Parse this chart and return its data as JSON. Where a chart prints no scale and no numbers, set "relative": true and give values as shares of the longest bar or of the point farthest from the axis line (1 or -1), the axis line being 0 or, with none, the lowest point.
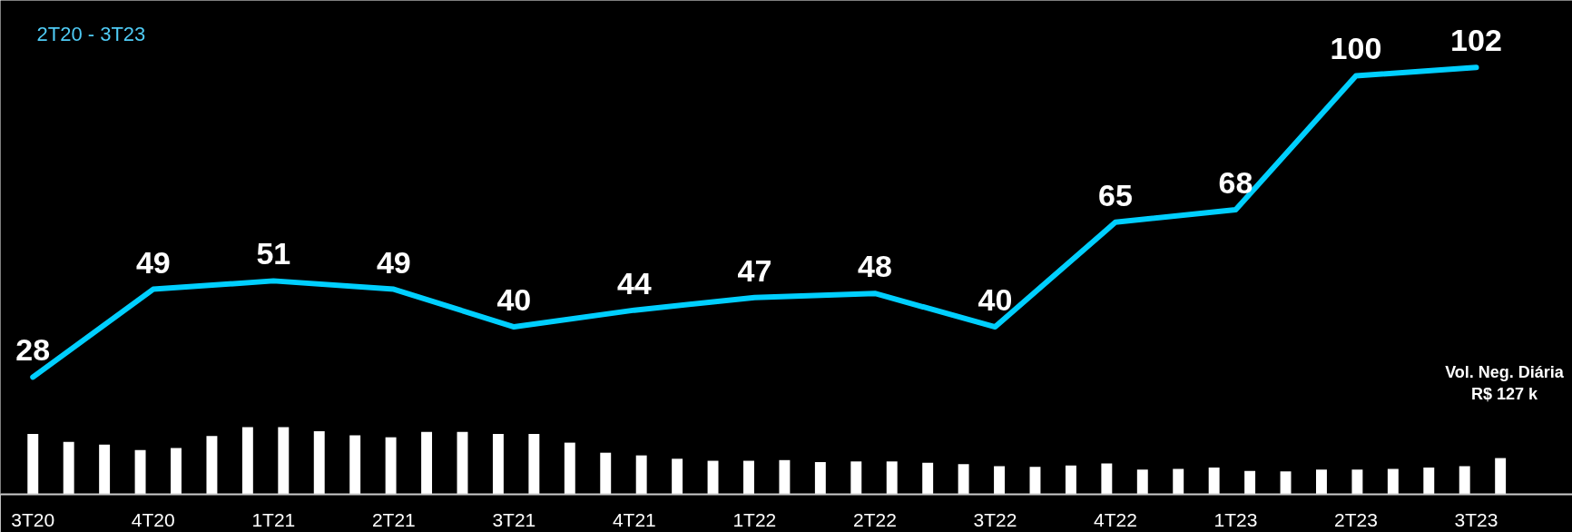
{
  "chart_data": [
    {
      "type": "line",
      "title": "2T20 - 3T23",
      "categories": [
        "3T20",
        "4T20",
        "1T21",
        "2T21",
        "3T21",
        "4T21",
        "1T22",
        "2T22",
        "3T22",
        "4T22",
        "1T23",
        "2T23",
        "3T23"
      ],
      "series": [
        {
          "color": "#00cfff",
          "values": [
            28,
            49,
            51,
            49,
            40,
            44,
            47,
            48,
            40,
            65,
            68,
            100,
            102
          ]
        }
      ],
      "ylim": [
        0,
        118
      ],
      "data_labels": true,
      "grid": false,
      "line_style": "solid",
      "marker": "none"
    },
    {
      "type": "bar",
      "relative": true,
      "color": "#ffffff",
      "grid": false,
      "categories": [
        null,
        null,
        null,
        null,
        null,
        null,
        null,
        null,
        null,
        null,
        null,
        null,
        null,
        null,
        null,
        null,
        null,
        null,
        null,
        null,
        null,
        null,
        null,
        null,
        null,
        null,
        null,
        null,
        null,
        null,
        null,
        null,
        null,
        null,
        null,
        null,
        null,
        null,
        null,
        null,
        null,
        null
      ],
      "values": [
        0.9,
        0.78,
        0.74,
        0.66,
        0.69,
        0.87,
        1,
        1,
        0.94,
        0.88,
        0.85,
        0.93,
        0.93,
        0.9,
        0.9,
        0.77,
        0.62,
        0.58,
        0.53,
        0.5,
        0.5,
        0.51,
        0.48,
        0.49,
        0.49,
        0.47,
        0.45,
        0.42,
        0.41,
        0.43,
        0.46,
        0.37,
        0.38,
        0.4,
        0.35,
        0.34,
        0.37,
        0.37,
        0.38,
        0.4,
        0.42,
        0.54
      ],
      "annotations": [
        "Vol. Neg. Diária\nR$ 127 k"
      ]
    }
  ]
}
